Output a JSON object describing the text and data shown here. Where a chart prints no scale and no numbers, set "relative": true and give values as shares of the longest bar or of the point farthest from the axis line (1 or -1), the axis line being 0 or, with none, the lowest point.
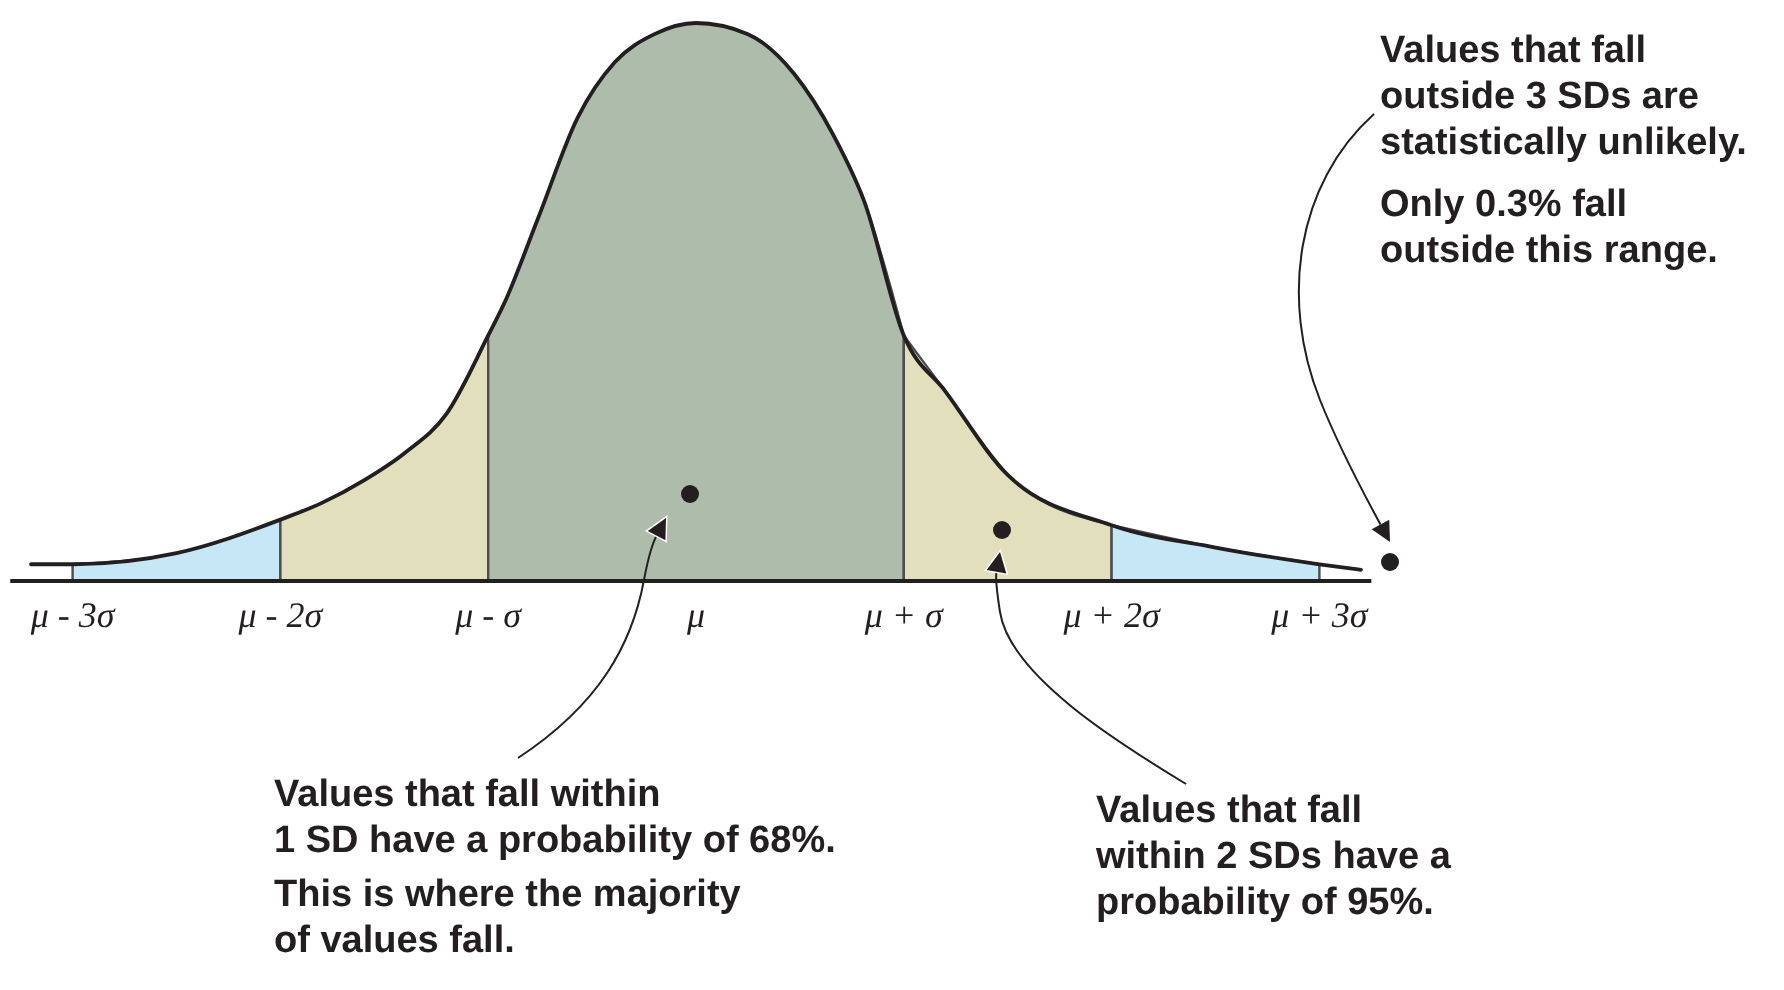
{
  "chart_data": {
    "type": "area",
    "relative": true,
    "xlim": [
      -3.3,
      3.25
    ],
    "xticks": [
      {
        "value": -3,
        "label": "μ - 3σ"
      },
      {
        "value": -2,
        "label": "μ - 2σ"
      },
      {
        "value": -1,
        "label": "μ - σ"
      },
      {
        "value": 0,
        "label": "μ"
      },
      {
        "value": 1,
        "label": "μ + σ"
      },
      {
        "value": 2,
        "label": "μ + 2σ"
      },
      {
        "value": 3,
        "label": "μ + 3σ"
      }
    ],
    "series": [
      {
        "color": "#c6e7f6",
        "x": [
          -3,
          -2.5,
          -2
        ],
        "values": [
          0.03,
          0.05,
          0.11
        ]
      },
      {
        "color": "#e2dfbd",
        "x": [
          -2,
          -1.8,
          -1.6,
          -1.4,
          -1.2,
          -1
        ],
        "values": [
          0.11,
          0.14,
          0.18,
          0.23,
          0.3,
          0.44
        ]
      },
      {
        "color": "#adbcab",
        "x": [
          -1,
          -0.92,
          -0.76,
          -0.57,
          -0.39,
          -0.2,
          0,
          0.25,
          0.47,
          0.66,
          0.81,
          1
        ],
        "values": [
          0.44,
          0.5,
          0.65,
          0.83,
          0.93,
          0.98,
          1,
          0.98,
          0.91,
          0.8,
          0.68,
          0.44
        ]
      },
      {
        "color": "#e2dfbd",
        "x": [
          1,
          1.2,
          1.5,
          2
        ],
        "values": [
          0.44,
          0.34,
          0.19,
          0.1
        ]
      },
      {
        "color": "#c6e7f6",
        "x": [
          2,
          2.5,
          3
        ],
        "values": [
          0.1,
          0.06,
          0.03
        ]
      },
      {
        "type": "line",
        "color": "#231f20",
        "x": [
          -3.2,
          -3,
          -2.5,
          -2,
          -1.8,
          -1.6,
          -1.4,
          -1.2,
          -1,
          -0.92,
          -0.76,
          -0.57,
          -0.39,
          -0.2,
          0,
          0.25,
          0.47,
          0.66,
          0.81,
          1,
          1.2,
          1.5,
          2,
          2.5,
          3,
          3.2
        ],
        "values": [
          0.03,
          0.03,
          0.05,
          0.11,
          0.14,
          0.18,
          0.23,
          0.3,
          0.44,
          0.5,
          0.65,
          0.83,
          0.93,
          0.98,
          1,
          0.98,
          0.91,
          0.8,
          0.68,
          0.44,
          0.34,
          0.19,
          0.1,
          0.06,
          0.03,
          0.02
        ]
      }
    ],
    "annotations": [
      "Values that fall outside 3 SDs are statistically unlikely.",
      "Only 0.3% fall outside this range.",
      "Values that fall within 1 SD have a probability of 68%.",
      "This is where the majority of values fall.",
      "Values that fall within 2 SDs have a probability of 95%."
    ]
  }
}
